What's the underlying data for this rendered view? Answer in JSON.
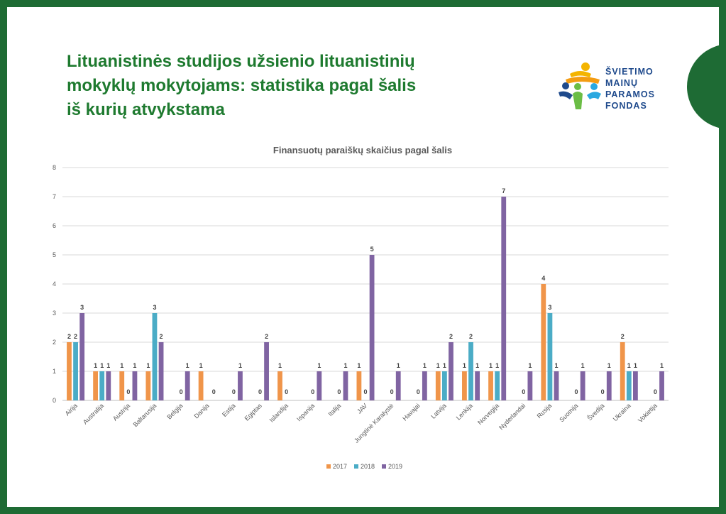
{
  "page": {
    "title_lines": [
      "Lituanistinės studijos užsienio lituanistinių",
      "mokyklų mokytojams: statistika pagal šalis",
      "iš kurių atvykstama"
    ]
  },
  "logo": {
    "lines": [
      "ŠVIETIMO",
      "MAINŲ",
      "PARAMOS",
      "FONDAS"
    ]
  },
  "chart_data": {
    "type": "bar",
    "title": "Finansuotų paraiškų skaičius pagal šalis",
    "xlabel": "",
    "ylabel": "",
    "ylim": [
      0,
      8
    ],
    "yticks": [
      0,
      1,
      2,
      3,
      4,
      5,
      6,
      7,
      8
    ],
    "grid": true,
    "legend_position": "bottom",
    "categories": [
      "Airija",
      "Australija",
      "Austrija",
      "Baltarusija",
      "Belgija",
      "Danija",
      "Estija",
      "Egiptas",
      "Islandija",
      "Ispanija",
      "Italija",
      "JAV",
      "Jungtinė Karalystė",
      "Havajai",
      "Latvija",
      "Lenkija",
      "Norvegija",
      "Nyderlandai",
      "Rusija",
      "Suomija",
      "Švedija",
      "Ukraina",
      "Vokietija"
    ],
    "series": [
      {
        "name": "2017",
        "color": "#f0954a",
        "values": [
          2,
          1,
          1,
          1,
          null,
          1,
          null,
          null,
          1,
          null,
          null,
          1,
          null,
          null,
          1,
          1,
          1,
          null,
          4,
          null,
          null,
          2,
          null
        ]
      },
      {
        "name": "2018",
        "color": "#4bacc6",
        "values": [
          2,
          1,
          0,
          3,
          0,
          null,
          0,
          0,
          0,
          0,
          0,
          0,
          0,
          0,
          1,
          2,
          1,
          0,
          3,
          0,
          0,
          1,
          0
        ]
      },
      {
        "name": "2019",
        "color": "#8064a2",
        "values": [
          3,
          1,
          1,
          2,
          1,
          0,
          1,
          2,
          null,
          1,
          1,
          5,
          1,
          1,
          2,
          1,
          7,
          1,
          1,
          1,
          1,
          1,
          1
        ]
      }
    ]
  }
}
